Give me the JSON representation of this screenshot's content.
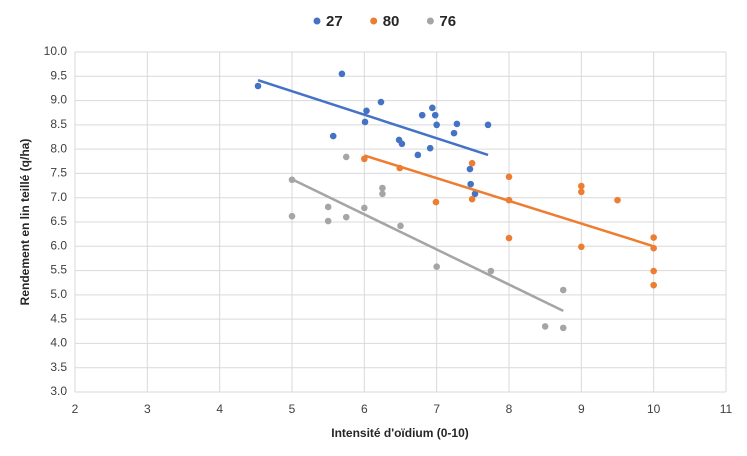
{
  "chart_data": {
    "type": "scatter",
    "xlabel": "Intensité d'oïdium (0-10)",
    "ylabel": "Rendement en lin teillé (q/ha)",
    "xlim": [
      2,
      11
    ],
    "xticks": [
      2,
      3,
      4,
      5,
      6,
      7,
      8,
      9,
      10,
      11
    ],
    "ylim": [
      3,
      10
    ],
    "yticks": [
      {
        "value": 3,
        "label": "3.0"
      },
      {
        "value": 3.5,
        "label": "3.5"
      },
      {
        "value": 4,
        "label": "4.0"
      },
      {
        "value": 4.5,
        "label": "4.5"
      },
      {
        "value": 5,
        "label": "5.0"
      },
      {
        "value": 5.5,
        "label": "5.5"
      },
      {
        "value": 6,
        "label": "6.0"
      },
      {
        "value": 6.5,
        "label": "6.5"
      },
      {
        "value": 7,
        "label": "7.0"
      },
      {
        "value": 7.5,
        "label": "7.5"
      },
      {
        "value": 8,
        "label": "8.0"
      },
      {
        "value": 8.5,
        "label": "8.5"
      },
      {
        "value": 9,
        "label": "9.0"
      },
      {
        "value": 9.5,
        "label": "9.5"
      },
      {
        "value": 10,
        "label": "10.0"
      }
    ],
    "grid": true,
    "legend": "top",
    "series": [
      {
        "name": "27",
        "color": "#4472c4",
        "x": [
          4.53,
          5.69,
          5.57,
          6.01,
          6.03,
          6.23,
          6.48,
          6.52,
          6.74,
          6.8,
          6.91,
          6.94,
          6.98,
          7.0,
          7.24,
          7.28,
          7.46,
          7.47,
          7.53,
          7.71
        ],
        "y": [
          9.3,
          9.55,
          8.27,
          8.56,
          8.79,
          8.97,
          8.19,
          8.11,
          7.88,
          8.7,
          8.02,
          8.85,
          8.7,
          8.5,
          8.33,
          8.52,
          7.59,
          7.28,
          7.08,
          8.5
        ],
        "trendline": {
          "x": [
            4.53,
            7.71
          ],
          "y": [
            9.42,
            7.88
          ]
        }
      },
      {
        "name": "80",
        "color": "#ed7d31",
        "x": [
          6.0,
          6.49,
          6.99,
          7.49,
          7.49,
          8.0,
          8.0,
          8.0,
          9.0,
          9.0,
          9.0,
          9.5,
          10.0,
          10.0,
          10.0,
          10.0
        ],
        "y": [
          7.8,
          7.61,
          6.91,
          7.71,
          6.97,
          7.43,
          6.95,
          6.17,
          7.24,
          7.12,
          5.99,
          6.95,
          6.18,
          5.96,
          5.49,
          5.2
        ],
        "trendline": {
          "x": [
            6.0,
            10.0
          ],
          "y": [
            7.87,
            6.0
          ]
        }
      },
      {
        "name": "76",
        "color": "#a5a5a5",
        "x": [
          5.0,
          5.0,
          5.5,
          5.5,
          5.75,
          5.75,
          6.0,
          6.25,
          6.25,
          6.5,
          7.0,
          7.75,
          8.5,
          8.75,
          8.75
        ],
        "y": [
          7.37,
          6.62,
          6.81,
          6.52,
          7.84,
          6.6,
          6.79,
          7.2,
          7.08,
          6.42,
          5.58,
          5.49,
          4.35,
          5.1,
          4.32
        ],
        "trendline": {
          "x": [
            5.0,
            8.75
          ],
          "y": [
            7.38,
            4.67
          ]
        }
      }
    ]
  }
}
